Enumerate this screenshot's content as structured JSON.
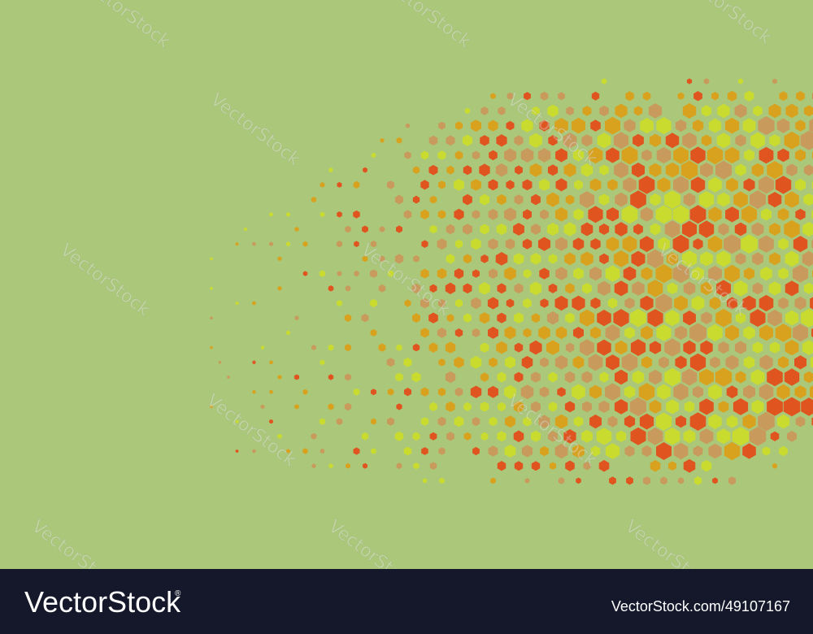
{
  "watermark": "VectorStock",
  "footer": {
    "brand": "VectorStock",
    "registered": "®",
    "image_id": "VectorStock.com/49107167"
  }
}
